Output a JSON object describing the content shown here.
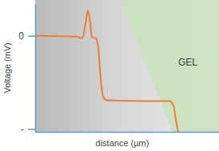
{
  "chart_data": {
    "type": "line",
    "x_label": "distance (µm)",
    "y_label": "Voltage (mV)",
    "annotations": [
      {
        "text": "GEL"
      }
    ],
    "x": [
      0,
      0.222,
      0.257,
      0.274,
      0.287,
      0.3,
      0.309,
      0.33,
      0.343,
      0.357,
      0.37,
      0.391,
      0.591,
      0.73,
      0.752,
      0.765,
      0.778
    ],
    "series": [
      {
        "color": "#ed7d31",
        "values": [
          0,
          -0.009,
          -0.026,
          0.128,
          0.274,
          0.128,
          -0.017,
          -0.026,
          -0.128,
          -0.47,
          -0.658,
          -0.692,
          -0.7,
          -0.7,
          -0.744,
          -0.897,
          -1.03
        ]
      }
    ],
    "xlim": [
      0,
      1
    ],
    "xticks": [],
    "ylim": [
      -1.03,
      0.34
    ],
    "yticks": [
      0,
      {
        "value": -1,
        "label": "-"
      }
    ],
    "tick_labels": "y",
    "grid": false
  }
}
